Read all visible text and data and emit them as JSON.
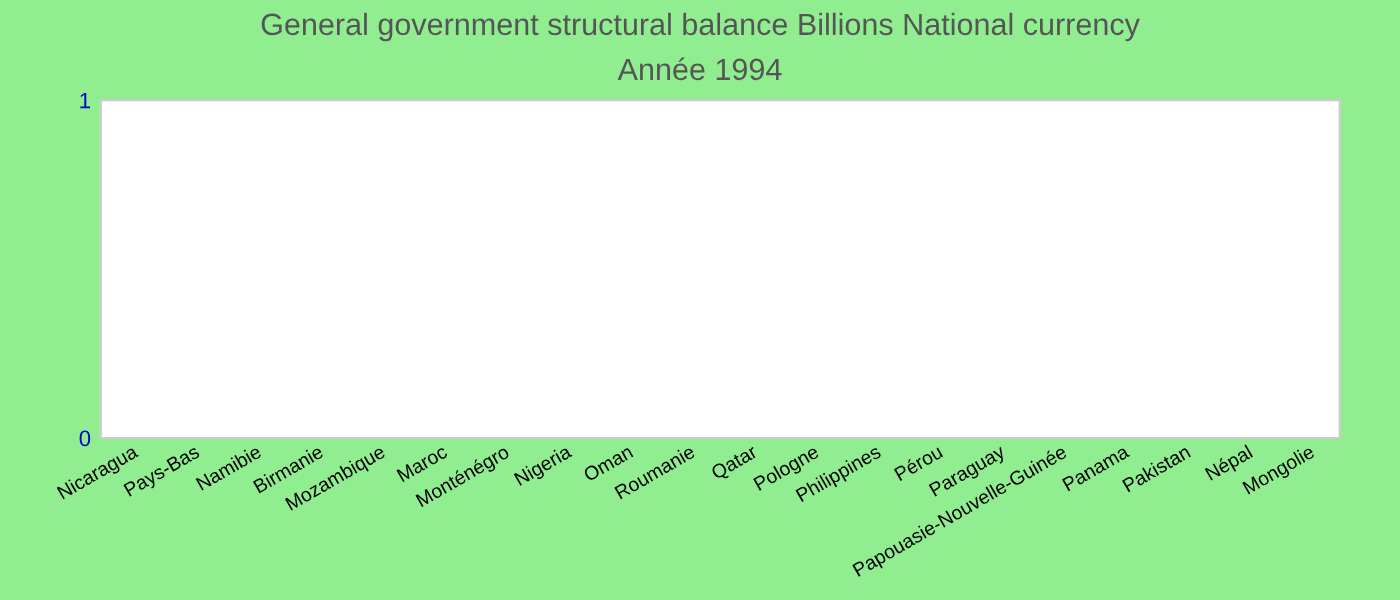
{
  "chart_data": {
    "type": "bar",
    "title": "General government structural balance Billions National currency",
    "subtitle": "Année 1994",
    "categories": [
      "Nicaragua",
      "Pays-Bas",
      "Namibie",
      "Birmanie",
      "Mozambique",
      "Maroc",
      "Monténégro",
      "Nigeria",
      "Oman",
      "Roumanie",
      "Qatar",
      "Pologne",
      "Philippines",
      "Pérou",
      "Paraguay",
      "Papouasie-Nouvelle-Guinée",
      "Panama",
      "Pakistan",
      "Népal",
      "Mongolie"
    ],
    "values": [
      null,
      null,
      null,
      null,
      null,
      null,
      null,
      null,
      null,
      null,
      null,
      null,
      null,
      null,
      null,
      null,
      null,
      null,
      null,
      null
    ],
    "ylim": [
      0,
      1
    ],
    "yticks": [
      0,
      1
    ],
    "grid": false,
    "legend": false
  }
}
